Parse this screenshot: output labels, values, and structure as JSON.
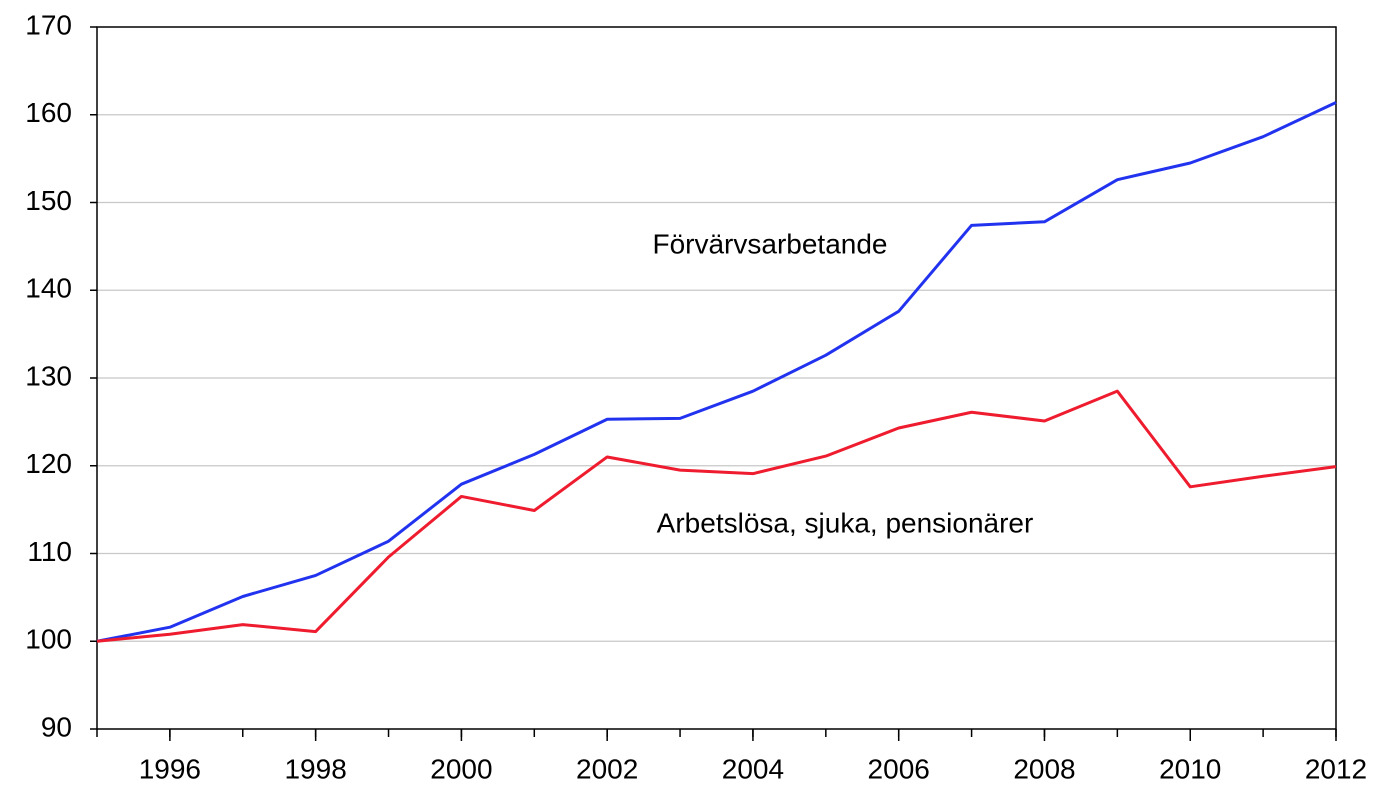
{
  "chart_data": {
    "type": "line",
    "x": [
      1995,
      1996,
      1997,
      1998,
      1999,
      2000,
      2001,
      2002,
      2003,
      2004,
      2005,
      2006,
      2007,
      2008,
      2009,
      2010,
      2011,
      2012
    ],
    "series": [
      {
        "name": "Förvärvsarbetande",
        "color": "#2233f0",
        "values": [
          100,
          101.6,
          105.1,
          107.5,
          111.4,
          117.9,
          121.3,
          125.3,
          125.4,
          128.5,
          132.6,
          137.6,
          147.4,
          147.8,
          152.6,
          154.5,
          157.5,
          161.4
        ]
      },
      {
        "name": "Arbetslösa, sjuka, pensionärer",
        "color": "#ee1c2e",
        "values": [
          100,
          100.8,
          101.9,
          101.1,
          109.6,
          116.5,
          114.9,
          121.0,
          119.5,
          119.1,
          121.1,
          124.3,
          126.1,
          125.1,
          128.5,
          117.6,
          118.8,
          119.9
        ]
      }
    ],
    "xlim": [
      1995,
      2012
    ],
    "xticks": [
      1996,
      1998,
      2000,
      2002,
      2004,
      2006,
      2008,
      2010,
      2012
    ],
    "ylim": [
      90,
      170
    ],
    "yticks": [
      90,
      100,
      110,
      120,
      130,
      140,
      150,
      160,
      170
    ],
    "grid": true
  }
}
